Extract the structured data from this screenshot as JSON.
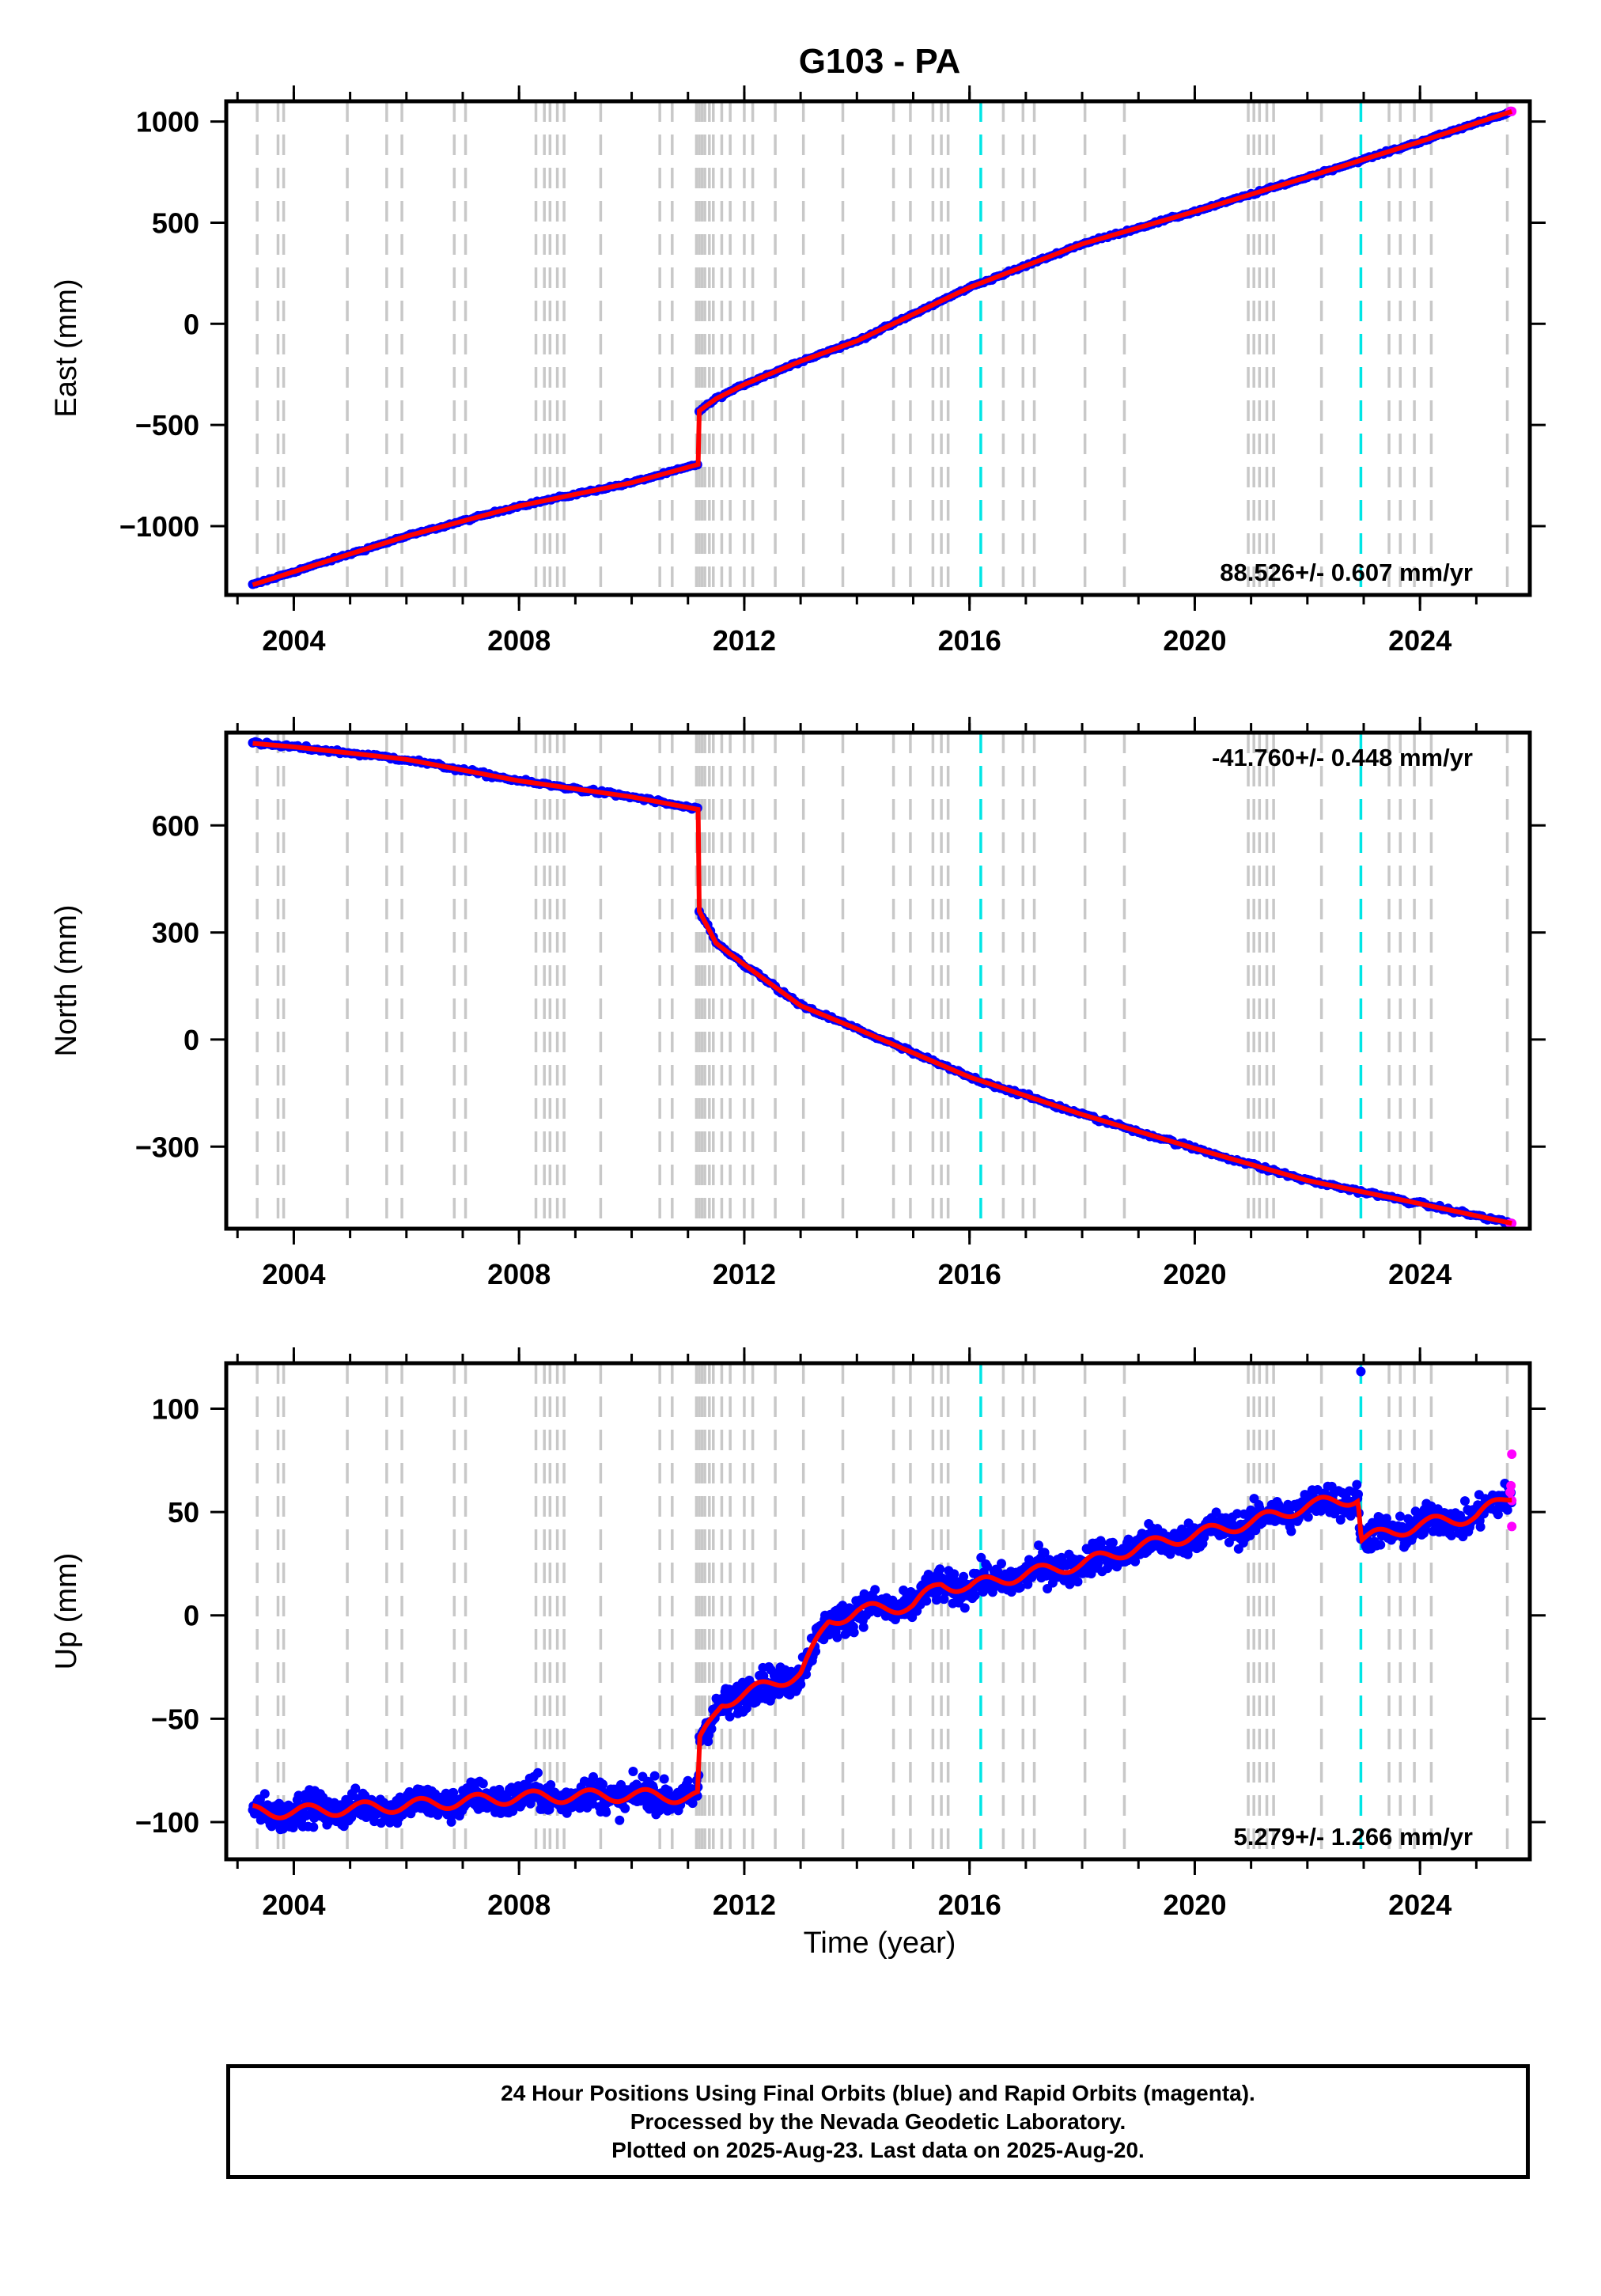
{
  "title": "G103 - PA",
  "xlabel": "Time (year)",
  "x_ticks": [
    2004,
    2008,
    2012,
    2016,
    2020,
    2024
  ],
  "xlim": [
    2002.8,
    2025.95
  ],
  "footer": {
    "line1": "24 Hour Positions Using Final Orbits (blue) and Rapid Orbits (magenta).",
    "line2": "Processed by the Nevada Geodetic Laboratory.",
    "line3": "Plotted on 2025-Aug-23. Last data on 2025-Aug-20."
  },
  "colors": {
    "final": "#0000ff",
    "rapid": "#ff00ff",
    "model": "#ff0000",
    "event_gray": "#c8c8c8",
    "event_cyan": "#00e5e5"
  },
  "event_lines_gray": [
    2003.35,
    2003.72,
    2003.82,
    2004.95,
    2005.65,
    2005.92,
    2006.85,
    2007.05,
    2008.3,
    2008.45,
    2008.55,
    2008.68,
    2008.8,
    2009.45,
    2010.5,
    2010.72,
    2011.15,
    2011.2,
    2011.25,
    2011.3,
    2011.38,
    2011.45,
    2011.6,
    2011.75,
    2012.0,
    2012.15,
    2012.55,
    2013.05,
    2013.75,
    2014.65,
    2014.95,
    2015.35,
    2015.5,
    2015.62,
    2016.6,
    2016.95,
    2017.15,
    2018.05,
    2018.75,
    2020.95,
    2021.05,
    2021.15,
    2021.28,
    2021.4,
    2022.25,
    2023.45,
    2023.65,
    2023.9,
    2024.2,
    2025.55
  ],
  "event_lines_cyan": [
    2016.2,
    2022.95
  ],
  "chart_data": [
    {
      "type": "scatter",
      "component": "east",
      "ylabel": "East (mm)",
      "ylim": [
        -1340,
        1100
      ],
      "y_ticks": [
        -1000,
        -500,
        0,
        500,
        1000
      ],
      "rate_text": "88.526+/- 0.607 mm/yr",
      "rate_position": "bottom-right",
      "series": [
        {
          "segment": "pre-2011.2",
          "x": [
            2003.27,
            2004.0,
            2006.0,
            2008.0,
            2010.0,
            2011.18
          ],
          "y": [
            -1290,
            -1225,
            -1050,
            -900,
            -785,
            -695
          ]
        },
        {
          "segment": "post-2011.2",
          "x": [
            2011.2,
            2011.5,
            2012.0,
            2013.0,
            2014.0,
            2016.0,
            2018.0,
            2020.0,
            2022.0,
            2024.0,
            2025.63
          ],
          "y": [
            -430,
            -370,
            -300,
            -185,
            -85,
            180,
            395,
            555,
            725,
            900,
            1050
          ]
        }
      ]
    },
    {
      "type": "scatter",
      "component": "north",
      "ylabel": "North (mm)",
      "ylim": [
        -530,
        860
      ],
      "y_ticks": [
        -300,
        0,
        300,
        600
      ],
      "rate_text": "-41.760+/- 0.448 mm/yr",
      "rate_position": "top-right",
      "series": [
        {
          "segment": "pre-2011.2",
          "x": [
            2003.27,
            2004.0,
            2006.0,
            2008.0,
            2010.0,
            2011.18
          ],
          "y": [
            830,
            820,
            785,
            725,
            680,
            645
          ]
        },
        {
          "segment": "post-2011.2",
          "x": [
            2011.2,
            2011.5,
            2012.0,
            2013.0,
            2014.0,
            2016.0,
            2018.0,
            2020.0,
            2022.0,
            2024.0,
            2025.63
          ],
          "y": [
            360,
            270,
            210,
            95,
            30,
            -105,
            -210,
            -305,
            -395,
            -460,
            -515
          ]
        }
      ]
    },
    {
      "type": "scatter",
      "component": "up",
      "ylabel": "Up (mm)",
      "ylim": [
        -118,
        122
      ],
      "y_ticks": [
        -100,
        -50,
        0,
        50,
        100
      ],
      "rate_text": "5.279+/- 1.266 mm/yr",
      "rate_position": "bottom-right",
      "series": [
        {
          "segment": "model",
          "x": [
            2003.27,
            2004.0,
            2006.0,
            2008.0,
            2010.0,
            2011.18,
            2011.2,
            2011.6,
            2012.0,
            2013.0,
            2013.5,
            2014.0,
            2015.0,
            2015.5,
            2016.0,
            2017.0,
            2018.0,
            2019.0,
            2020.0,
            2021.0,
            2022.0,
            2022.9,
            2022.96,
            2023.5,
            2024.0,
            2025.0,
            2025.63
          ],
          "y": [
            -95,
            -95,
            -92,
            -88,
            -87,
            -88,
            -62,
            -42,
            -38,
            -28,
            -3,
            2,
            5,
            15,
            14,
            20,
            25,
            33,
            39,
            45,
            53,
            57,
            37,
            40,
            44,
            48,
            58
          ]
        },
        {
          "segment": "outliers",
          "x": [
            2022.95,
            2025.63,
            2025.63
          ],
          "y": [
            118,
            78,
            43
          ]
        }
      ]
    }
  ]
}
